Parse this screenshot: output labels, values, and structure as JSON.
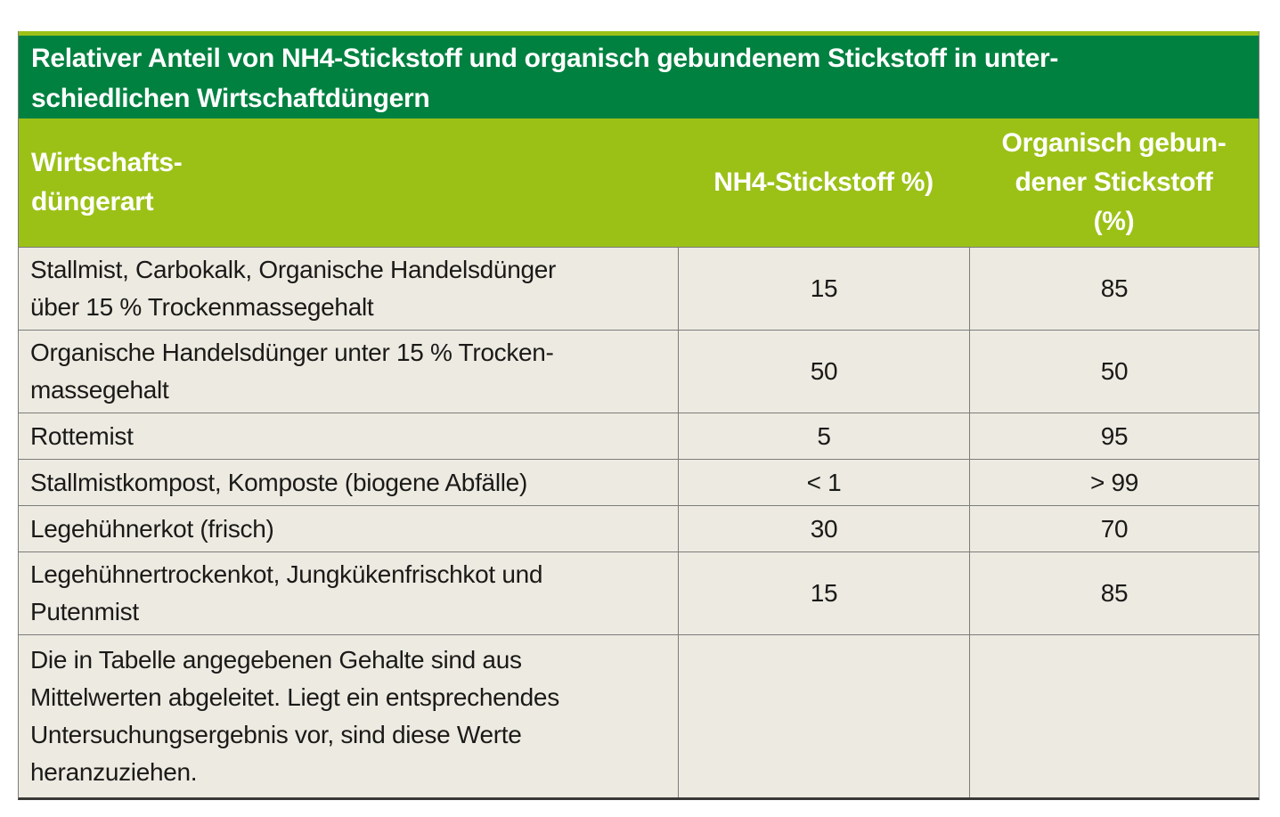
{
  "colors": {
    "header_green": "#008140",
    "header_lime": "#9bc117",
    "row_background": "#edeae1",
    "grid_line": "#7c7c7a",
    "bottom_border": "#393937",
    "text": "#1a1a18",
    "header_text": "#ffffff"
  },
  "table": {
    "title": "Relativer Anteil von NH4-Stickstoff und organisch gebundenem Stickstoff in unter-\nschiedlichen Wirtschaftdüngern",
    "columns": {
      "c1": "Wirtschafts-\ndüngerart",
      "c2": "NH4-Stickstoff %)",
      "c3": "Organisch gebun-\ndener Stickstoff\n(%)"
    },
    "rows": [
      {
        "label": "Stallmist, Carbokalk, Organische Handelsdünger\nüber 15 % Trockenmassegehalt",
        "nh4": "15",
        "org": "85"
      },
      {
        "label": "Organische Handelsdünger unter 15 % Trocken-\nmassegehalt",
        "nh4": "50",
        "org": "50"
      },
      {
        "label": "Rottemist",
        "nh4": "5",
        "org": "95"
      },
      {
        "label": "Stallmistkompost, Komposte (biogene Abfälle)",
        "nh4": "< 1",
        "org": "> 99"
      },
      {
        "label": "Legehühnerkot (frisch)",
        "nh4": "30",
        "org": "70"
      },
      {
        "label": "Legehühnertrockenkot, Jungkükenfrischkot und\nPutenmist",
        "nh4": "15",
        "org": "85"
      },
      {
        "label": "Die in Tabelle angegebenen Gehalte sind aus\nMittelwerten abgeleitet. Liegt ein entsprechendes\nUntersuchungsergebnis vor, sind diese Werte\nheranzuziehen.",
        "nh4": "",
        "org": ""
      }
    ]
  }
}
